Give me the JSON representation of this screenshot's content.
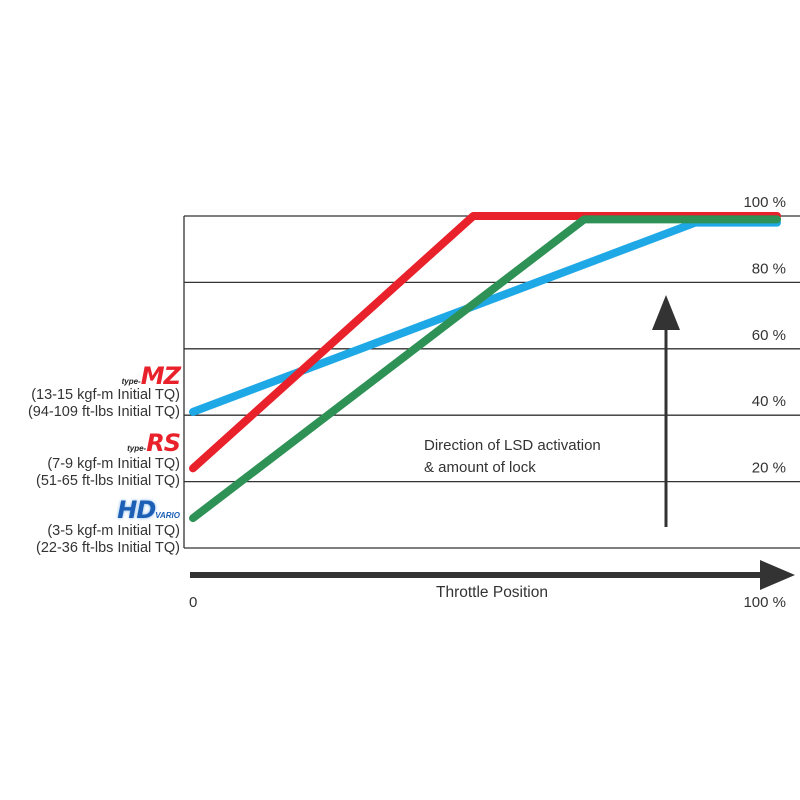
{
  "chart_data": {
    "type": "line",
    "xlabel": "Throttle Position",
    "x_tick_labels": [
      "0",
      "100 %"
    ],
    "xlim": [
      0,
      100
    ],
    "ylim": [
      0,
      100
    ],
    "y_tick_labels": [
      "20 %",
      "40 %",
      "60 %",
      "80 %",
      "100 %"
    ],
    "y_ticks": [
      20,
      40,
      60,
      80,
      100
    ],
    "grid": true,
    "annotation": [
      "Direction of LSD activation",
      "& amount of lock"
    ],
    "series": [
      {
        "name": "type-MZ",
        "color": "#1fa8e6",
        "points": [
          [
            0,
            41
          ],
          [
            86,
            98
          ],
          [
            100,
            98
          ]
        ]
      },
      {
        "name": "type-RS",
        "color": "#e8212b",
        "points": [
          [
            0,
            24
          ],
          [
            48,
            100
          ],
          [
            100,
            100
          ]
        ]
      },
      {
        "name": "HD VARIO",
        "color": "#2e9155",
        "points": [
          [
            0,
            9
          ],
          [
            67,
            99
          ],
          [
            100,
            99
          ]
        ]
      }
    ]
  },
  "legend": {
    "mz": {
      "prefix": "type-",
      "name": "MZ",
      "line1": "(13-15 kgf-m Initial TQ)",
      "line2": "(94-109 ft-lbs Initial TQ)"
    },
    "rs": {
      "prefix": "type-",
      "name": "RS",
      "line1": "(7-9 kgf-m Initial TQ)",
      "line2": "(51-65 ft-lbs Initial TQ)"
    },
    "hd": {
      "name": "HD",
      "sub": "VARIO",
      "line1": "(3-5 kgf-m Initial TQ)",
      "line2": "(22-36 ft-lbs Initial TQ)"
    }
  }
}
